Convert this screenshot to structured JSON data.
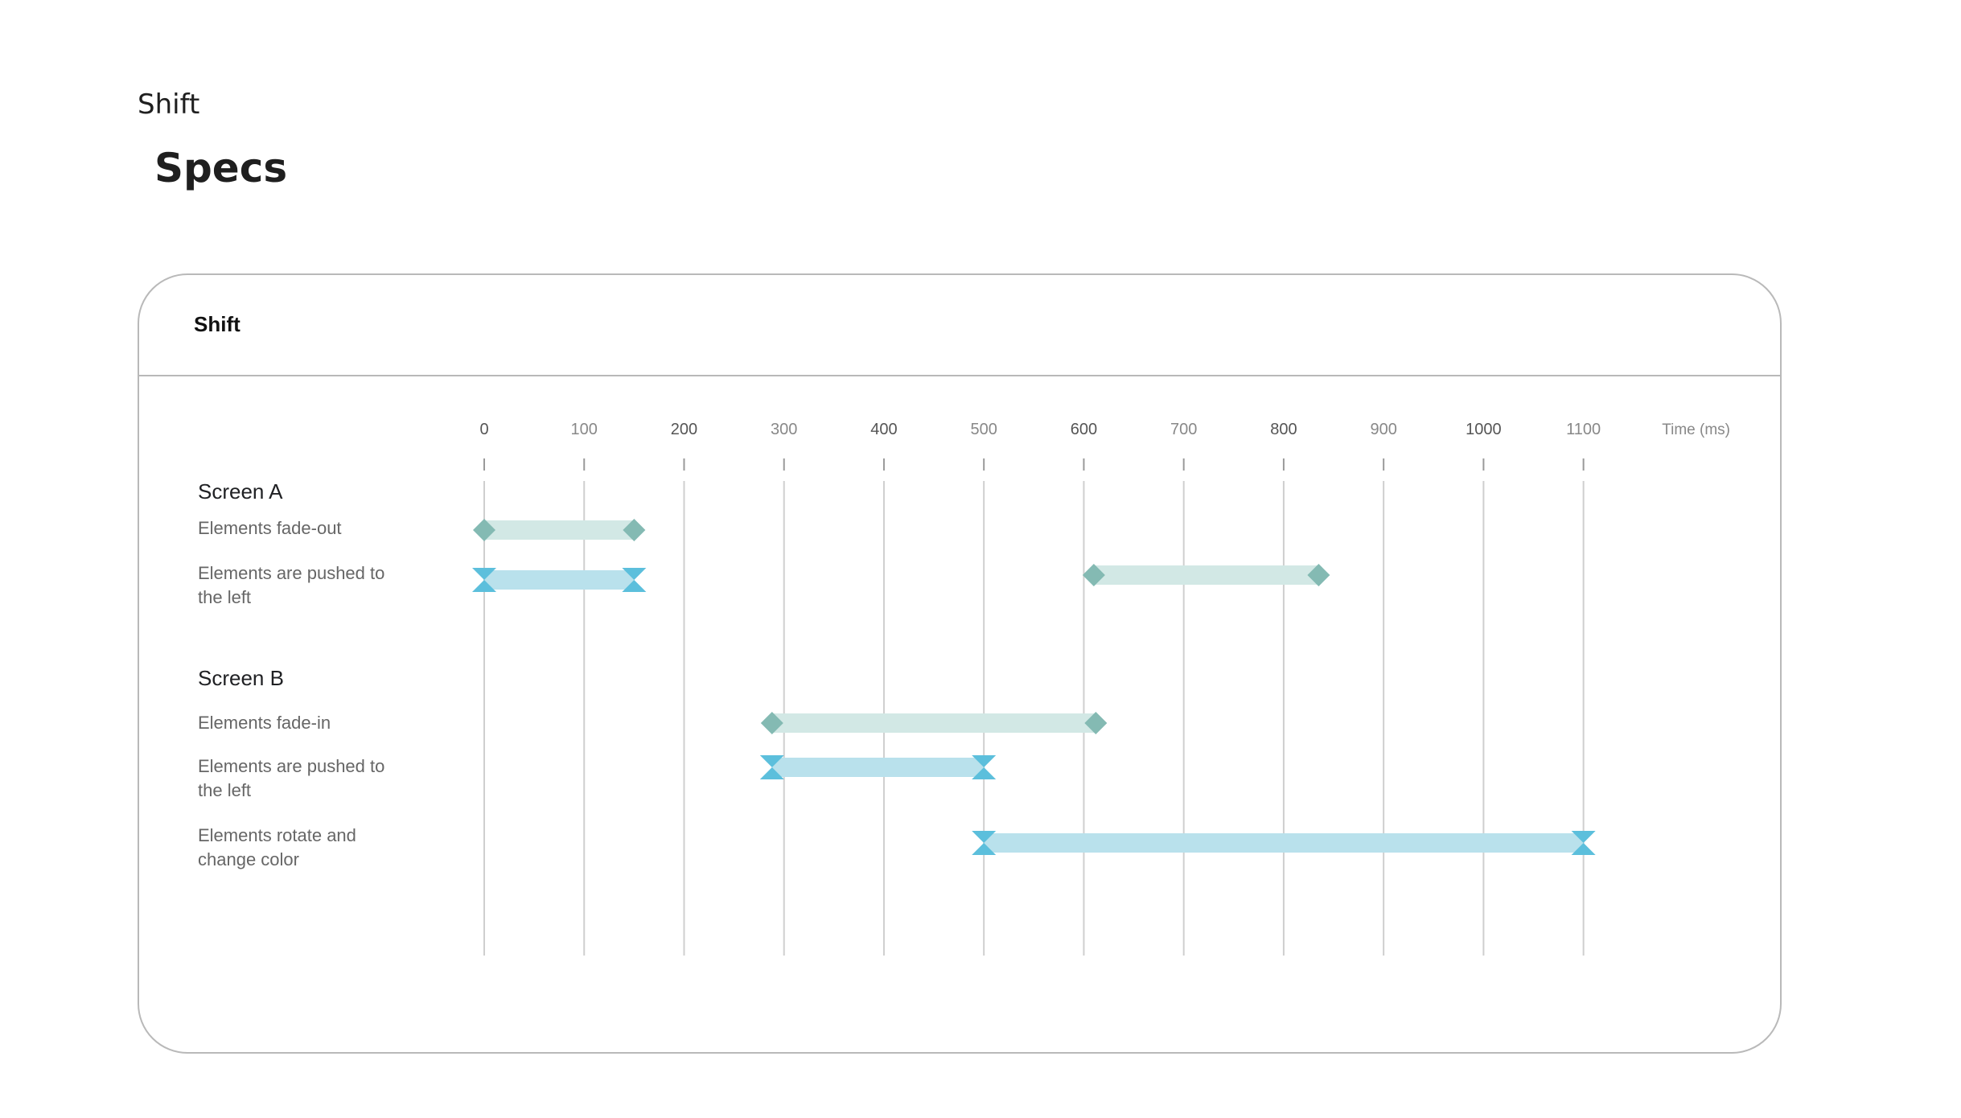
{
  "breadcrumb": "Shift",
  "page_title": "Specs",
  "card": {
    "title": "Shift"
  },
  "chart_data": {
    "type": "gantt",
    "x_unit_label": "Time (ms)",
    "ticks": [
      "0",
      "100",
      "200",
      "300",
      "400",
      "500",
      "600",
      "700",
      "800",
      "900",
      "1000",
      "1100"
    ],
    "xlim": [
      0,
      1100
    ],
    "colors": {
      "fade": "#d2e8e5",
      "fade_marker": "#84bab3",
      "move": "#b9e1ec",
      "move_marker": "#5cbfdc",
      "gridline": "#cfcfcf",
      "tick": "#9a9a9a"
    },
    "groups": [
      {
        "label": "Screen A",
        "rows": [
          {
            "label": "Elements fade-out",
            "bars": [
              {
                "start": 0,
                "end": 150,
                "kind": "fade"
              }
            ]
          },
          {
            "label": "Elements are pushed to the left",
            "bars": [
              {
                "start": 0,
                "end": 150,
                "kind": "move"
              },
              {
                "start": 610,
                "end": 835,
                "kind": "fade"
              }
            ]
          }
        ]
      },
      {
        "label": "Screen B",
        "rows": [
          {
            "label": "Elements fade-in",
            "bars": [
              {
                "start": 288,
                "end": 612,
                "kind": "fade"
              }
            ]
          },
          {
            "label": "Elements are pushed to the left",
            "bars": [
              {
                "start": 288,
                "end": 500,
                "kind": "move"
              }
            ]
          },
          {
            "label": "Elements rotate and change color",
            "bars": [
              {
                "start": 500,
                "end": 1100,
                "kind": "move"
              }
            ]
          }
        ]
      }
    ]
  }
}
